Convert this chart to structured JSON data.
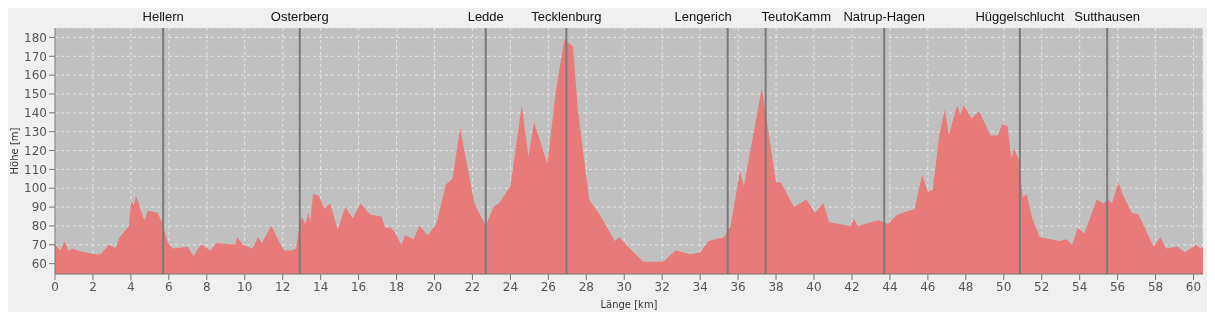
{
  "chart_data": {
    "type": "area",
    "xlabel": "Länge [km]",
    "ylabel": "Höhe [m]",
    "x": [
      0,
      0.3,
      0.5,
      0.7,
      0.9,
      1.2,
      1.6,
      2.07,
      2.4,
      2.85,
      3.2,
      3.4,
      3.74,
      3.9,
      4.01,
      4.15,
      4.27,
      4.53,
      4.7,
      4.9,
      5.4,
      5.65,
      5.95,
      6.2,
      7,
      7.3,
      7.55,
      7.7,
      8.2,
      8.5,
      9.5,
      9.6,
      9.9,
      10.4,
      10.7,
      10.9,
      11.4,
      11.95,
      12.1,
      12.5,
      12.7,
      12.9,
      13,
      13.2,
      13.35,
      13.45,
      13.6,
      13.9,
      14.2,
      14.5,
      14.9,
      15.3,
      15.7,
      16.1,
      16.6,
      17.2,
      17.4,
      17.7,
      17.95,
      18.25,
      18.45,
      18.9,
      19.2,
      19.65,
      20.1,
      20.6,
      20.95,
      21.35,
      22.1,
      22.7,
      23.1,
      23.4,
      24,
      24.6,
      24.95,
      25.25,
      25.95,
      26.4,
      26.85,
      27.3,
      27.55,
      28.15,
      28.7,
      29.5,
      29.75,
      30.2,
      31,
      32.05,
      32.7,
      33.5,
      34,
      34.45,
      35.25,
      35.6,
      36.1,
      36.3,
      37.25,
      38,
      38.25,
      38.95,
      39.6,
      40.05,
      40.5,
      40.8,
      41.95,
      42.1,
      42.3,
      43.4,
      43.9,
      44.4,
      45.3,
      45.7,
      46,
      46.25,
      46.6,
      46.9,
      47.1,
      47.55,
      47.7,
      47.9,
      48.3,
      48.7,
      49.3,
      49.7,
      49.9,
      50.2,
      50.4,
      50.55,
      50.8,
      51,
      51.2,
      51.5,
      51.9,
      52.95,
      53.3,
      53.6,
      53.9,
      54.25,
      54.9,
      55.25,
      55.5,
      55.7,
      56.05,
      56.25,
      56.75,
      57.1,
      57.9,
      58.25,
      58.55,
      59.15,
      59.55,
      60.15,
      60.35,
      60.5
    ],
    "series": [
      {
        "color": "#e87a7a",
        "values": [
          70,
          67,
          72,
          67,
          68,
          67,
          66,
          65,
          65,
          70,
          68,
          74,
          78,
          80,
          93,
          91,
          96,
          88,
          83,
          88,
          87,
          82,
          71,
          68,
          69,
          64,
          68,
          70,
          67,
          71,
          70,
          74,
          70,
          68,
          74,
          71,
          80,
          69,
          67,
          67,
          68,
          81,
          85,
          81,
          87,
          82,
          97,
          96,
          89,
          92,
          78,
          90,
          84,
          92,
          86,
          85,
          79,
          79,
          76,
          70,
          75,
          73,
          80,
          75,
          81,
          102,
          105,
          132,
          92,
          80,
          90,
          92,
          101,
          144,
          117,
          135,
          113,
          152,
          179,
          175,
          142,
          94,
          86,
          72,
          74,
          69,
          61,
          61,
          67,
          65,
          66,
          72,
          74,
          80,
          109,
          101,
          153,
          103,
          103,
          90,
          94,
          87,
          92,
          82,
          80,
          84,
          80,
          83,
          81,
          86,
          89,
          107,
          98,
          99,
          128,
          142,
          128,
          144,
          139,
          144,
          137,
          141,
          128,
          128,
          134,
          133,
          116,
          121,
          115,
          95,
          97,
          84,
          74,
          72,
          73,
          70,
          79,
          76,
          94,
          92,
          94,
          92,
          103,
          97,
          87,
          86,
          69,
          74,
          68,
          69,
          66,
          70,
          68,
          69
        ]
      }
    ],
    "xlim": [
      0,
      60.5
    ],
    "ylim": [
      54.5,
      185
    ],
    "xticks": [
      0,
      2,
      4,
      6,
      8,
      10,
      12,
      14,
      16,
      18,
      20,
      22,
      24,
      26,
      28,
      30,
      32,
      34,
      36,
      38,
      40,
      42,
      44,
      46,
      48,
      50,
      52,
      54,
      56,
      58,
      60
    ],
    "yticks": [
      60,
      70,
      80,
      90,
      100,
      110,
      120,
      130,
      140,
      150,
      160,
      170,
      180
    ],
    "grid": true,
    "ref_lines": [
      {
        "axis": "x",
        "value": 5.7,
        "label": "Hellern",
        "color": "#7a7a7a"
      },
      {
        "axis": "x",
        "value": 12.9,
        "label": "Osterberg",
        "color": "#7a7a7a"
      },
      {
        "axis": "x",
        "value": 22.7,
        "label": "Ledde",
        "color": "#7a7a7a"
      },
      {
        "axis": "x",
        "value": 26.95,
        "label": "Tecklenburg",
        "color": "#7a7a7a"
      },
      {
        "axis": "x",
        "value": 35.45,
        "label": "Lengerich",
        "color": "#7a7a7a"
      },
      {
        "axis": "x",
        "value": 37.45,
        "label": "TeutoKamm",
        "color": "#7a7a7a"
      },
      {
        "axis": "x",
        "value": 43.7,
        "label": "Natrup-Hagen",
        "color": "#7a7a7a"
      },
      {
        "axis": "x",
        "value": 50.85,
        "label": "Hüggelschlucht",
        "color": "#7a7a7a"
      },
      {
        "axis": "x",
        "value": 55.45,
        "label": "Sutthausen",
        "color": "#7a7a7a"
      }
    ]
  }
}
